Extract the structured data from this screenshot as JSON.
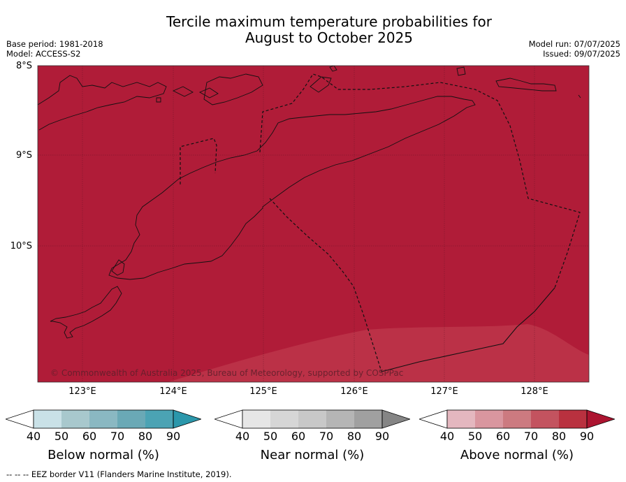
{
  "title_line1": "Tercile maximum temperature probabilities for",
  "title_line2": "August to October 2025",
  "meta_left": {
    "base_period": "Base period: 1981-2018",
    "model": "Model: ACCESS-S2"
  },
  "meta_right": {
    "model_run": "Model run: 07/07/2025",
    "issued": "Issued: 09/07/2025"
  },
  "map": {
    "lat_labels": [
      "8°S",
      "9°S",
      "10°S"
    ],
    "lon_labels": [
      "123°E",
      "124°E",
      "125°E",
      "126°E",
      "127°E",
      "128°E"
    ],
    "copyright": "© Commonwealth of Australia 2025, Bureau of Meteorology, supported by COSPPac",
    "colors": {
      "fill_90": "#b01c38",
      "fill_80": "#bb3147",
      "coast": "#111111"
    }
  },
  "colorbars": [
    {
      "title": "Below normal (%)",
      "ticks": [
        "40",
        "50",
        "60",
        "70",
        "80",
        "90"
      ],
      "colors": [
        "#ffffff",
        "#c9e1e7",
        "#a8c8cd",
        "#8ab8c2",
        "#6aa9b6",
        "#4ba3b4",
        "#2b97ab"
      ]
    },
    {
      "title": "Near normal (%)",
      "ticks": [
        "40",
        "50",
        "60",
        "70",
        "80",
        "90"
      ],
      "colors": [
        "#ffffff",
        "#e6e6e6",
        "#d6d6d6",
        "#c8c8c8",
        "#b5b5b5",
        "#a0a0a0",
        "#858585"
      ]
    },
    {
      "title": "Above normal (%)",
      "ticks": [
        "40",
        "50",
        "60",
        "70",
        "80",
        "90"
      ],
      "colors": [
        "#ffffff",
        "#e4b7bf",
        "#d9969f",
        "#cc7a80",
        "#c3535f",
        "#b9313f",
        "#ac1430"
      ]
    }
  ],
  "footer": "--  --  -- EEZ border V11 (Flanders Marine Institute, 2019)."
}
